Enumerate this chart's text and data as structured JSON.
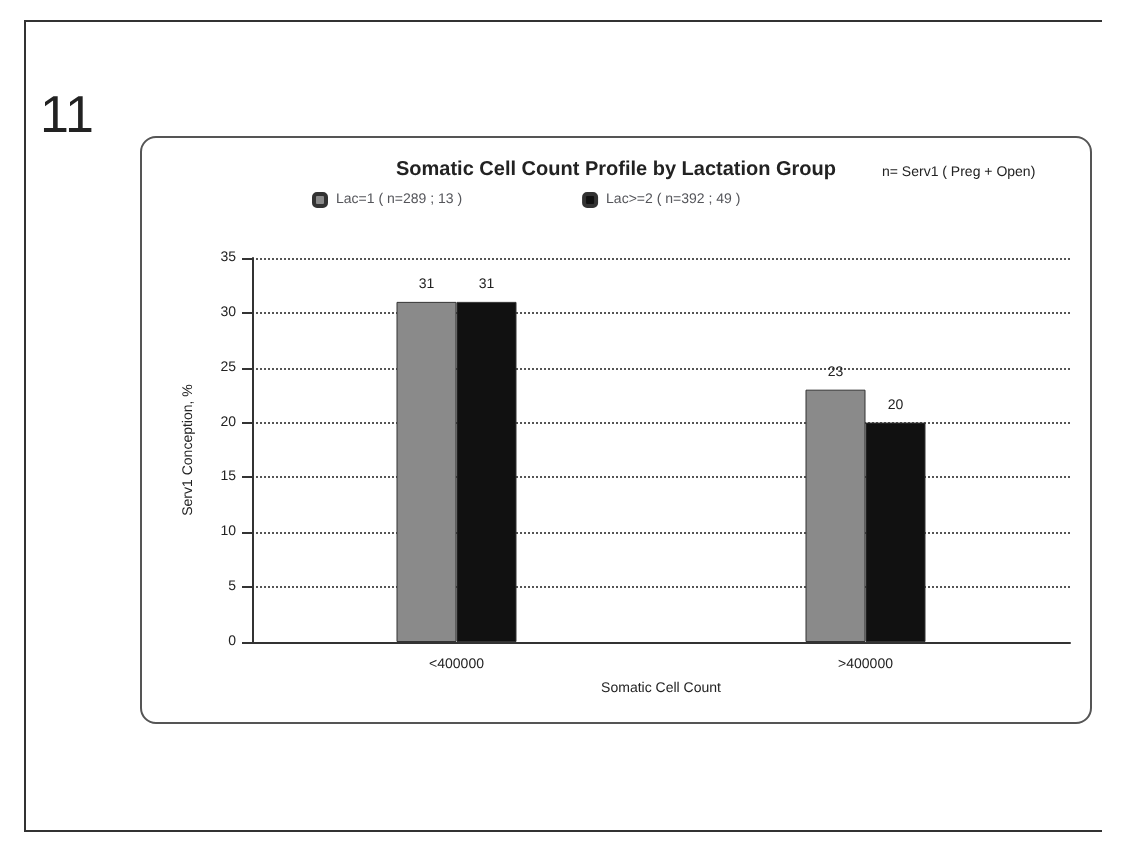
{
  "chart_data": {
    "type": "bar",
    "title": "Somatic Cell Count Profile by Lactation Group",
    "xlabel": "Somatic Cell Count",
    "ylabel": "Serv1 Conception, %",
    "categories": [
      "<400000",
      ">400000"
    ],
    "series": [
      {
        "name": "Lac=1 ( n=289 ; 13 )",
        "color": "#8a8a8a",
        "values": [
          31,
          23
        ]
      },
      {
        "name": "Lac>=2 ( n=392 ; 49 )",
        "color": "#111111",
        "values": [
          31,
          20
        ]
      }
    ],
    "ylim": [
      0,
      35
    ],
    "yticks": [
      0,
      5,
      10,
      15,
      20,
      25,
      30,
      35
    ],
    "grid": "y",
    "legend": "top",
    "data_labels": true,
    "annotations": [
      "11",
      "n= Serv1 ( Preg + Open)"
    ]
  }
}
